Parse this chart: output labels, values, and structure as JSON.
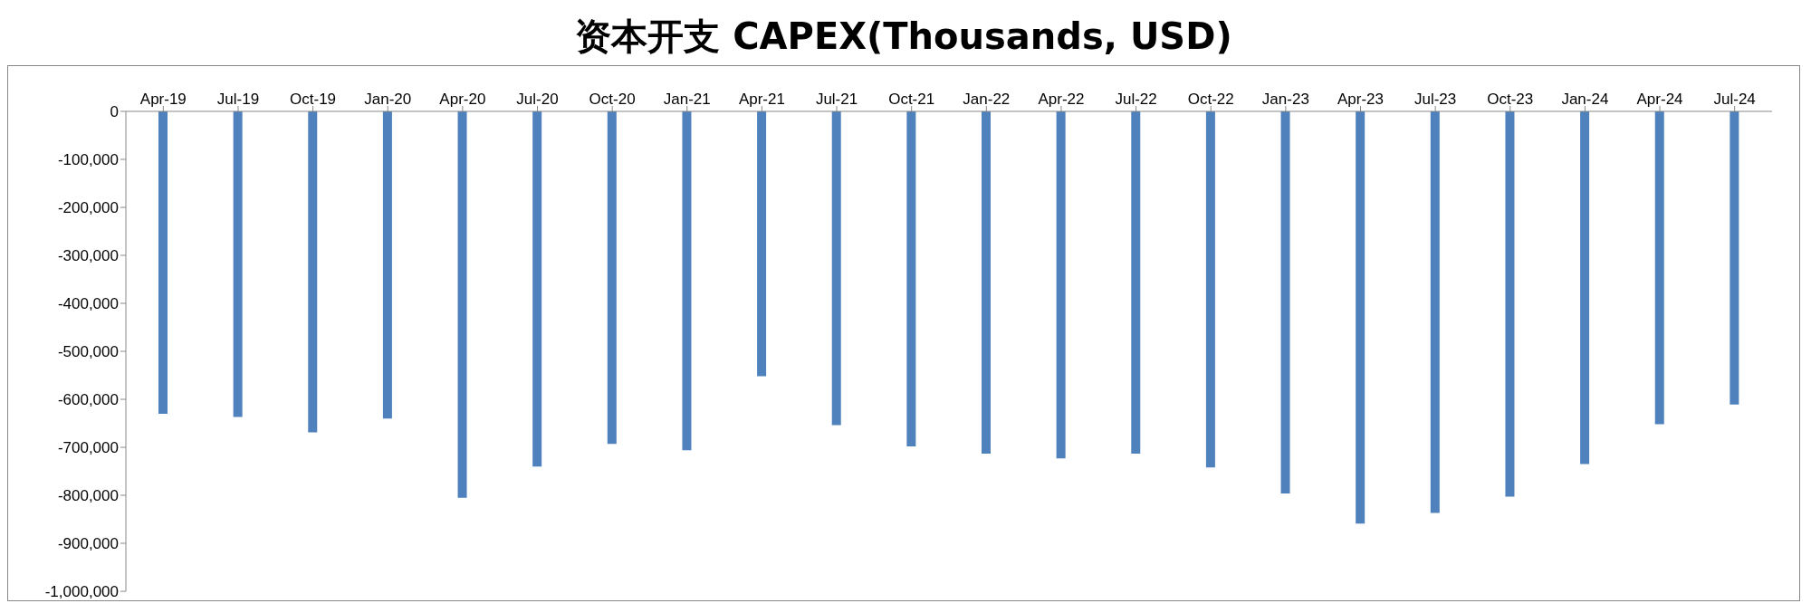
{
  "chart_data": {
    "type": "bar",
    "title": "资本开支 CAPEX(Thousands, USD)",
    "categories": [
      "Apr-19",
      "Jul-19",
      "Oct-19",
      "Jan-20",
      "Apr-20",
      "Jul-20",
      "Oct-20",
      "Jan-21",
      "Apr-21",
      "Jul-21",
      "Oct-21",
      "Jan-22",
      "Apr-22",
      "Jul-22",
      "Oct-22",
      "Jan-23",
      "Apr-23",
      "Jul-23",
      "Oct-23",
      "Jan-24",
      "Apr-24",
      "Jul-24"
    ],
    "values": [
      -630000,
      -637000,
      -669000,
      -640000,
      -805000,
      -740000,
      -693000,
      -706000,
      -552000,
      -654000,
      -698000,
      -713000,
      -723000,
      -713000,
      -742000,
      -796000,
      -859000,
      -837000,
      -803000,
      -735000,
      -652000,
      -611000
    ],
    "color": "#4f81bd",
    "ylim": [
      -1000000,
      0
    ],
    "yticks": [
      {
        "value": 0,
        "label": "0"
      },
      {
        "value": -100000,
        "label": "-100,000"
      },
      {
        "value": -200000,
        "label": "-200,000"
      },
      {
        "value": -300000,
        "label": "-300,000"
      },
      {
        "value": -400000,
        "label": "-400,000"
      },
      {
        "value": -500000,
        "label": "-500,000"
      },
      {
        "value": -600000,
        "label": "-600,000"
      },
      {
        "value": -700000,
        "label": "-700,000"
      },
      {
        "value": -800000,
        "label": "-800,000"
      },
      {
        "value": -900000,
        "label": "-900,000"
      },
      {
        "value": -1000000,
        "label": "-1,000,000"
      }
    ],
    "grid": false,
    "legend": false
  }
}
